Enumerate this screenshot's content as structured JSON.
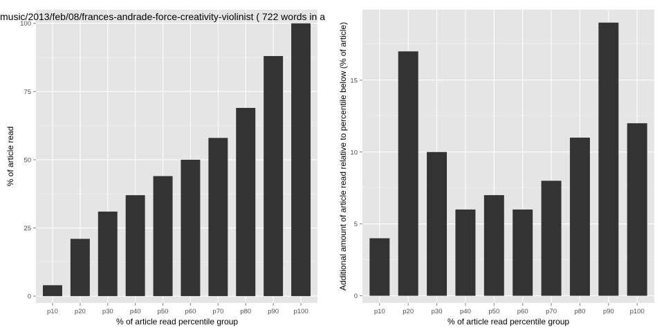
{
  "chart_data": [
    {
      "type": "bar",
      "title": "music/2013/feb/08/frances-andrade-force-creativity-violinist ( 722 words in a",
      "xlabel": "% of article read percentile group",
      "ylabel": "% of article read",
      "categories": [
        "p10",
        "p20",
        "p30",
        "p40",
        "p50",
        "p60",
        "p70",
        "p80",
        "p90",
        "p100"
      ],
      "values": [
        4,
        21,
        31,
        37,
        44,
        50,
        58,
        69,
        88,
        100
      ],
      "ylim": [
        -2.5,
        105
      ],
      "yticks": [
        0,
        25,
        50,
        75,
        100
      ],
      "grid": true,
      "bar_color": "#333333",
      "panel_color": "#e5e5e5",
      "grid_color": "#ffffff"
    },
    {
      "type": "bar",
      "title": "",
      "xlabel": "% of article read percentile group",
      "ylabel": "Additional amount of article read relative to percentile below (% of article)",
      "categories": [
        "p10",
        "p20",
        "p30",
        "p40",
        "p50",
        "p60",
        "p70",
        "p80",
        "p90",
        "p100"
      ],
      "values": [
        4,
        17,
        10,
        6,
        7,
        6,
        8,
        11,
        19,
        12
      ],
      "ylim": [
        -0.5,
        19.9
      ],
      "yticks": [
        0,
        5,
        10,
        15
      ],
      "grid": true,
      "bar_color": "#333333",
      "panel_color": "#e5e5e5",
      "grid_color": "#ffffff"
    }
  ]
}
